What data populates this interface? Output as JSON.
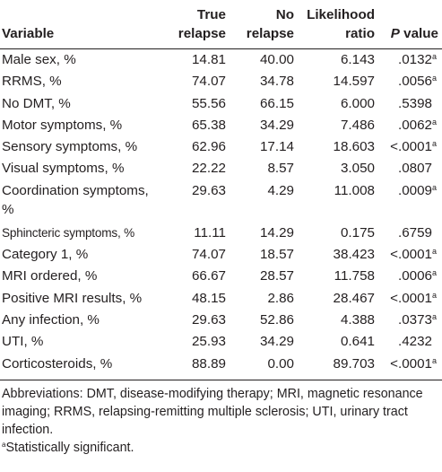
{
  "table": {
    "headers": {
      "variable": "Variable",
      "true_relapse": [
        "True",
        "relapse"
      ],
      "no_relapse": [
        "No",
        "relapse"
      ],
      "likelihood_ratio": [
        "Likelihood",
        "ratio"
      ],
      "p_value": "P value"
    },
    "rows": [
      {
        "variable": "Male sex, %",
        "true_relapse": "14.81",
        "no_relapse": "40.00",
        "lr": "6.143",
        "p": ".0132",
        "sig": "a"
      },
      {
        "variable": "RRMS, %",
        "true_relapse": "74.07",
        "no_relapse": "34.78",
        "lr": "14.597",
        "p": ".0056",
        "sig": "a"
      },
      {
        "variable": "No DMT, %",
        "true_relapse": "55.56",
        "no_relapse": "66.15",
        "lr": "6.000",
        "p": ".5398",
        "sig": ""
      },
      {
        "variable": "Motor symptoms, %",
        "true_relapse": "65.38",
        "no_relapse": "34.29",
        "lr": "7.486",
        "p": ".0062",
        "sig": "a"
      },
      {
        "variable": "Sensory symptoms, %",
        "true_relapse": "62.96",
        "no_relapse": "17.14",
        "lr": "18.603",
        "p": "<.0001",
        "sig": "a"
      },
      {
        "variable": "Visual symptoms, %",
        "true_relapse": "22.22",
        "no_relapse": "8.57",
        "lr": "3.050",
        "p": ".0807",
        "sig": ""
      },
      {
        "variable": "Coordination symptoms, %",
        "true_relapse": "29.63",
        "no_relapse": "4.29",
        "lr": "11.008",
        "p": ".0009",
        "sig": "a"
      },
      {
        "variable": "Sphincteric symptoms, %",
        "true_relapse": "11.11",
        "no_relapse": "14.29",
        "lr": "0.175",
        "p": ".6759",
        "sig": ""
      },
      {
        "variable": "Category 1, %",
        "true_relapse": "74.07",
        "no_relapse": "18.57",
        "lr": "38.423",
        "p": "<.0001",
        "sig": "a"
      },
      {
        "variable": "MRI ordered, %",
        "true_relapse": "66.67",
        "no_relapse": "28.57",
        "lr": "11.758",
        "p": ".0006",
        "sig": "a"
      },
      {
        "variable": "Positive MRI results, %",
        "true_relapse": "48.15",
        "no_relapse": "2.86",
        "lr": "28.467",
        "p": "<.0001",
        "sig": "a"
      },
      {
        "variable": "Any infection, %",
        "true_relapse": "29.63",
        "no_relapse": "52.86",
        "lr": "4.388",
        "p": ".0373",
        "sig": "a"
      },
      {
        "variable": "UTI, %",
        "true_relapse": "25.93",
        "no_relapse": "34.29",
        "lr": "0.641",
        "p": ".4232",
        "sig": ""
      },
      {
        "variable": "Corticosteroids, %",
        "true_relapse": "88.89",
        "no_relapse": "0.00",
        "lr": "89.703",
        "p": "<.0001",
        "sig": "a"
      }
    ]
  },
  "footnotes": {
    "abbreviations": "Abbreviations: DMT, disease-modifying therapy; MRI, magnetic resonance imaging; RRMS, relapsing-remitting multiple sclerosis; UTI, urinary tract infection.",
    "significance_marker": "a",
    "significance_text": "Statistically significant."
  }
}
